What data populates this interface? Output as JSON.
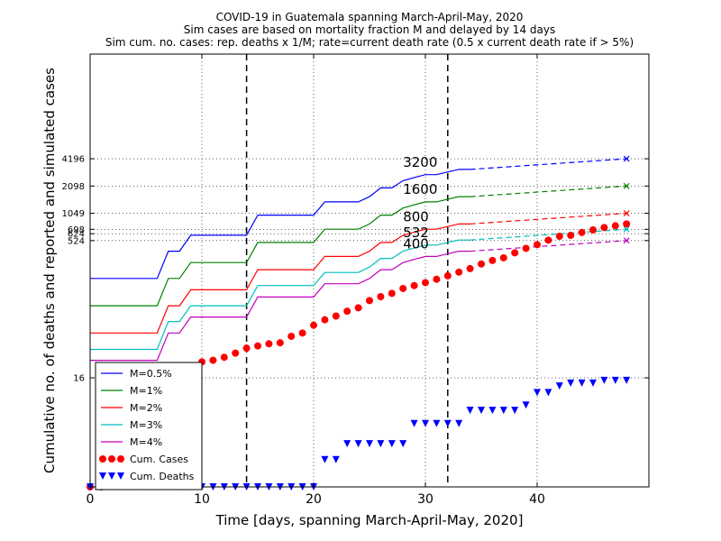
{
  "chart_data": {
    "type": "line",
    "title_lines": [
      "COVID-19 in Guatemala spanning March-April-May, 2020",
      "Sim cases are based on mortality fraction M and delayed by 14 days",
      "Sim cum. no. cases: rep. deaths x 1/M; rate=current death rate (0.5 x current death rate if > 5%)"
    ],
    "xlabel": "Time [days, spanning March-April-May, 2020]",
    "ylabel": "Cumulative no. of deaths and reported and simulated cases",
    "xlim": [
      0,
      50
    ],
    "ylim": [
      1,
      60000
    ],
    "y_scale": "log",
    "grid": "dotted",
    "xticks": [
      0,
      10,
      20,
      30,
      40
    ],
    "yticks": [
      16,
      524,
      624,
      698,
      1049,
      2098,
      4196
    ],
    "ytick_labels": [
      "16",
      "524",
      "624",
      "698",
      "1049",
      "2098",
      "4196"
    ],
    "vlines": [
      14,
      32
    ],
    "legend_position": "lower-left",
    "annotations": [
      {
        "text": "3200",
        "x": 28.0,
        "y": 3200
      },
      {
        "text": "1600",
        "x": 28.0,
        "y": 1600
      },
      {
        "text": "800",
        "x": 28.0,
        "y": 800
      },
      {
        "text": "532",
        "x": 28.0,
        "y": 532
      },
      {
        "text": "400",
        "x": 28.0,
        "y": 400
      }
    ],
    "x": [
      0,
      1,
      2,
      3,
      4,
      5,
      6,
      7,
      8,
      9,
      10,
      11,
      12,
      13,
      14,
      15,
      16,
      17,
      18,
      19,
      20,
      21,
      22,
      23,
      24,
      25,
      26,
      27,
      28,
      29,
      30,
      31,
      32,
      33,
      34
    ],
    "projection_x": [
      34,
      48
    ],
    "series": [
      {
        "name": "M=0.5%",
        "color": "#0000ff",
        "values": [
          200,
          200,
          200,
          200,
          200,
          200,
          200,
          400,
          400,
          600,
          600,
          600,
          600,
          600,
          600,
          1000,
          1000,
          1000,
          1000,
          1000,
          1000,
          1400,
          1400,
          1400,
          1400,
          1600,
          2000,
          2000,
          2400,
          2600,
          2800,
          2800,
          3000,
          3200,
          3200
        ],
        "projection": [
          3200,
          4196
        ],
        "projection_marker": "x"
      },
      {
        "name": "M=1%",
        "color": "#008000",
        "values": [
          100,
          100,
          100,
          100,
          100,
          100,
          100,
          200,
          200,
          300,
          300,
          300,
          300,
          300,
          300,
          500,
          500,
          500,
          500,
          500,
          500,
          700,
          700,
          700,
          700,
          800,
          1000,
          1000,
          1200,
          1300,
          1400,
          1400,
          1500,
          1600,
          1600
        ],
        "projection": [
          1600,
          2098
        ],
        "projection_marker": "x"
      },
      {
        "name": "M=2%",
        "color": "#ff0000",
        "values": [
          50,
          50,
          50,
          50,
          50,
          50,
          50,
          100,
          100,
          150,
          150,
          150,
          150,
          150,
          150,
          250,
          250,
          250,
          250,
          250,
          250,
          350,
          350,
          350,
          350,
          400,
          500,
          500,
          600,
          650,
          700,
          700,
          750,
          800,
          800
        ],
        "projection": [
          800,
          1049
        ],
        "projection_marker": "x"
      },
      {
        "name": "M=3%",
        "color": "#00bfbf",
        "values": [
          33,
          33,
          33,
          33,
          33,
          33,
          33,
          67,
          67,
          100,
          100,
          100,
          100,
          100,
          100,
          167,
          167,
          167,
          167,
          167,
          167,
          233,
          233,
          233,
          233,
          267,
          333,
          333,
          400,
          433,
          467,
          467,
          500,
          532,
          532
        ],
        "projection": [
          532,
          698
        ],
        "projection_marker": "x"
      },
      {
        "name": "M=4%",
        "color": "#bf00bf",
        "values": [
          25,
          25,
          25,
          25,
          25,
          25,
          25,
          50,
          50,
          75,
          75,
          75,
          75,
          75,
          75,
          125,
          125,
          125,
          125,
          125,
          125,
          175,
          175,
          175,
          175,
          200,
          250,
          250,
          300,
          325,
          350,
          350,
          375,
          400,
          400
        ],
        "projection": [
          400,
          524
        ],
        "projection_marker": "x"
      }
    ],
    "cum_cases": {
      "name": "Cum. Cases",
      "color": "#ff0000",
      "marker": "circle",
      "x": [
        0,
        1,
        2,
        3,
        4,
        5,
        6,
        7,
        8,
        9,
        10,
        11,
        12,
        13,
        14,
        15,
        16,
        17,
        18,
        19,
        20,
        21,
        22,
        23,
        24,
        25,
        26,
        27,
        28,
        29,
        30,
        31,
        32,
        33,
        34,
        35,
        36,
        37,
        38,
        39,
        40,
        41,
        42,
        43,
        44,
        45,
        46,
        47,
        48
      ],
      "values": [
        1,
        1,
        2,
        6,
        6,
        9,
        12,
        19,
        20,
        21,
        24,
        25,
        27,
        30,
        34,
        36,
        38,
        39,
        46,
        50,
        61,
        70,
        77,
        87,
        95,
        114,
        126,
        137,
        155,
        167,
        180,
        196,
        214,
        235,
        257,
        289,
        316,
        338,
        384,
        430,
        473,
        530,
        585,
        599,
        644,
        688,
        730,
        763,
        800
      ]
    },
    "cum_deaths": {
      "name": "Cum. Deaths",
      "color": "#0000ff",
      "marker": "triangle-down",
      "x": [
        0,
        1,
        2,
        3,
        4,
        5,
        6,
        7,
        8,
        9,
        10,
        11,
        12,
        13,
        14,
        15,
        16,
        17,
        18,
        19,
        20,
        21,
        22,
        23,
        24,
        25,
        26,
        27,
        28,
        29,
        30,
        31,
        32,
        33,
        34,
        35,
        36,
        37,
        38,
        39,
        40,
        41,
        42,
        43,
        44,
        45,
        46,
        47,
        48
      ],
      "values": [
        1,
        1,
        1,
        1,
        1,
        1,
        1,
        1,
        1,
        1,
        1,
        1,
        1,
        1,
        1,
        1,
        1,
        1,
        1,
        1,
        1,
        2,
        2,
        3,
        3,
        3,
        3,
        3,
        3,
        5,
        5,
        5,
        5,
        5,
        7,
        7,
        7,
        7,
        7,
        8,
        11,
        11,
        13,
        14,
        14,
        14,
        15,
        15,
        15
      ]
    }
  }
}
